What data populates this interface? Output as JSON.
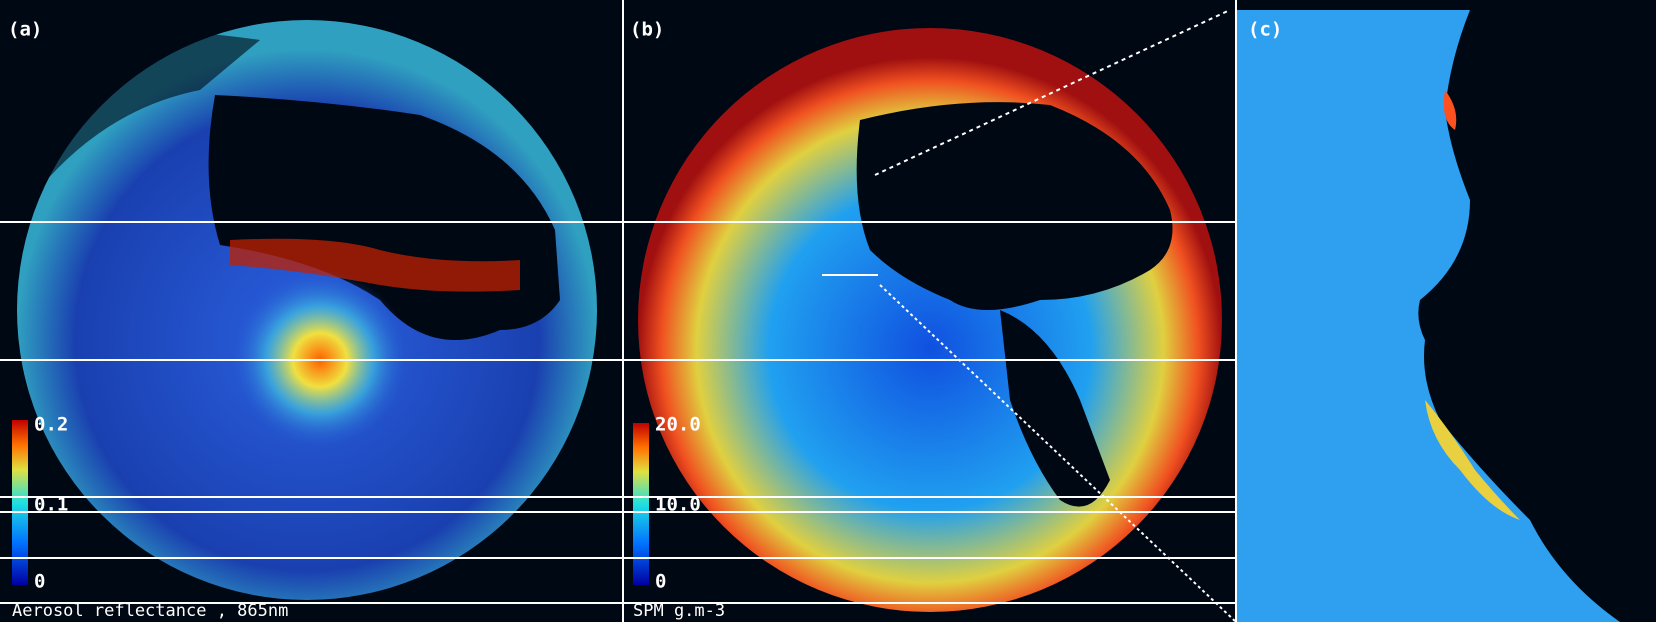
{
  "panels": [
    {
      "label": "(a)",
      "scale_labels": [
        "0.2",
        "0.1",
        "0"
      ],
      "caption": "Aerosol reflectance , 865nm"
    },
    {
      "label": "(b)",
      "scale_labels": [
        "20.0",
        "10.0",
        "0"
      ],
      "caption": "SPM g.m-3"
    },
    {
      "label": "(c)"
    }
  ]
}
